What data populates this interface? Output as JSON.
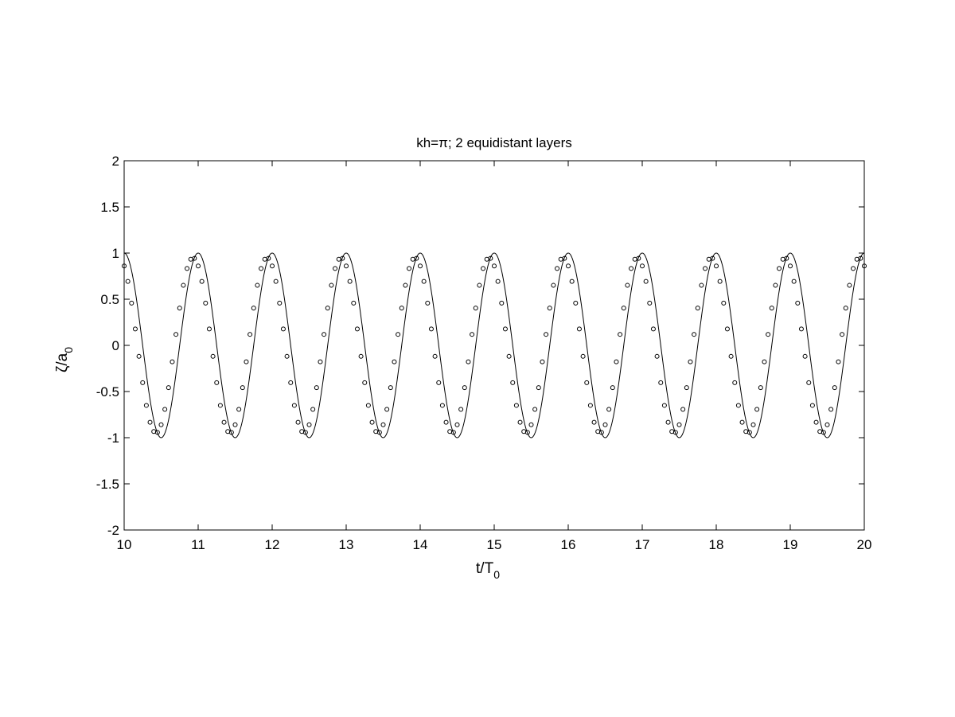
{
  "chart_data": {
    "type": "line",
    "title": "kh=π; 2 equidistant layers",
    "xlabel": {
      "main": "t/T",
      "sub": "0"
    },
    "ylabel": {
      "main": "ζ/a",
      "sub": "0"
    },
    "xlim": [
      10,
      20
    ],
    "ylim": [
      -2,
      2
    ],
    "xticks": [
      "10",
      "11",
      "12",
      "13",
      "14",
      "15",
      "16",
      "17",
      "18",
      "19",
      "20"
    ],
    "yticks": [
      "2",
      "1.5",
      "1",
      "0.5",
      "0",
      "-0.5",
      "-1",
      "-1.5",
      "-2"
    ],
    "grid": false,
    "legend": "none",
    "series": [
      {
        "style": "solid-line",
        "color": "#000000",
        "amplitude": 1.0,
        "period": 1.0,
        "peak_t": [
          11,
          12,
          13,
          14,
          15,
          16,
          17,
          18,
          19,
          20
        ],
        "trough_t": [
          10.5,
          11.5,
          12.5,
          13.5,
          14.5,
          15.5,
          16.5,
          17.5,
          18.5,
          19.5
        ]
      },
      {
        "style": "open-circle-markers",
        "color": "#000000",
        "amplitude": 0.95,
        "period": 1.0,
        "phase_lead": 0.07,
        "sample_step": 0.05,
        "peak_t": [
          10.93,
          11.93,
          12.93,
          13.93,
          14.93,
          15.93,
          16.93,
          17.93,
          18.93,
          19.93
        ],
        "trough_t": [
          10.43,
          11.43,
          12.43,
          13.43,
          14.43,
          15.43,
          16.43,
          17.43,
          18.43,
          19.43
        ]
      }
    ]
  }
}
